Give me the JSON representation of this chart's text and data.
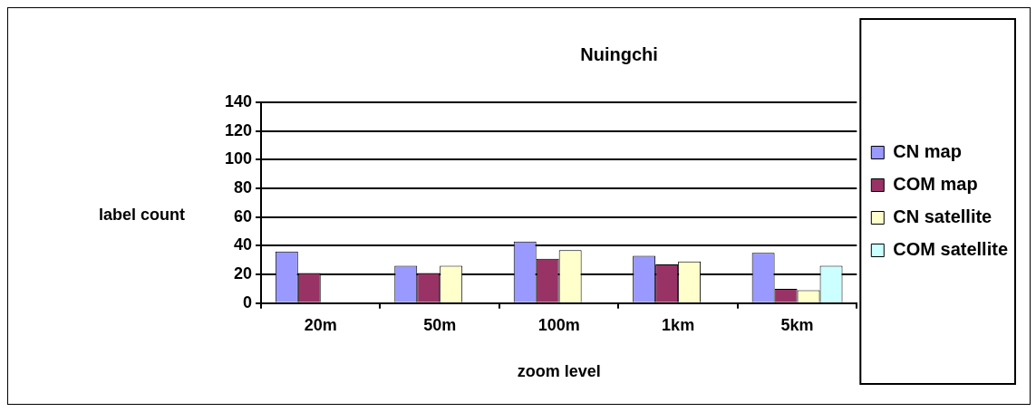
{
  "chart_data": {
    "type": "bar",
    "title": "Nuingchi",
    "xlabel": "zoom level",
    "ylabel": "label count",
    "categories": [
      "20m",
      "50m",
      "100m",
      "1km",
      "5km"
    ],
    "series": [
      {
        "name": "CN map",
        "color": "#9999ff",
        "values": [
          36,
          26,
          43,
          33,
          35
        ]
      },
      {
        "name": "COM map",
        "color": "#993366",
        "values": [
          21,
          21,
          31,
          27,
          10
        ]
      },
      {
        "name": "CN satellite",
        "color": "#ffffcc",
        "values": [
          null,
          26,
          37,
          29,
          9
        ]
      },
      {
        "name": "COM satellite",
        "color": "#ccffff",
        "values": [
          null,
          null,
          null,
          null,
          26
        ]
      }
    ],
    "ylim": [
      0,
      140
    ],
    "yticks": [
      0,
      20,
      40,
      60,
      80,
      100,
      120,
      140
    ],
    "grid": "y",
    "legend": "right"
  }
}
